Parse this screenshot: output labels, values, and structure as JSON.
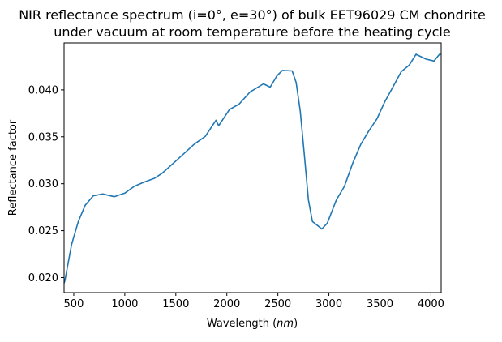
{
  "chart_data": {
    "type": "line",
    "title": [
      "NIR reflectance spectrum (i=0°, e=30°) of bulk EET96029 CM chondrite",
      "under vacuum at room temperature before the heating cycle"
    ],
    "xlabel": "Wavelength (",
    "xlabel_unit": "nm",
    "xlabel_close": ")",
    "ylabel": "Reflectance factor",
    "xlim": [
      405,
      4100
    ],
    "ylim": [
      0.0184,
      0.045
    ],
    "xticks": [
      500,
      1000,
      1500,
      2000,
      2500,
      3000,
      3500,
      4000
    ],
    "xtick_labels": [
      "500",
      "1000",
      "1500",
      "2000",
      "2500",
      "3000",
      "3500",
      "4000"
    ],
    "yticks": [
      0.02,
      0.025,
      0.03,
      0.035,
      0.04
    ],
    "ytick_labels": [
      "0.020",
      "0.025",
      "0.030",
      "0.035",
      "0.040"
    ],
    "grid": false,
    "series": [
      {
        "color": "#1f77b4",
        "x": [
          405,
          413,
          447,
          479,
          545,
          612,
          691,
          784,
          896,
          1000,
          1093,
          1185,
          1291,
          1370,
          1503,
          1681,
          1788,
          1893,
          1920,
          2026,
          2120,
          2226,
          2358,
          2425,
          2491,
          2544,
          2640,
          2679,
          2719,
          2759,
          2799,
          2838,
          2931,
          2984,
          3073,
          3152,
          3232,
          3311,
          3390,
          3470,
          3549,
          3629,
          3708,
          3788,
          3854,
          3950,
          4030,
          4083,
          4100
        ],
        "y": [
          0.0194,
          0.01966,
          0.02167,
          0.02353,
          0.02598,
          0.02771,
          0.02871,
          0.02891,
          0.02862,
          0.029,
          0.02972,
          0.03015,
          0.03058,
          0.03115,
          0.03245,
          0.03422,
          0.03503,
          0.03676,
          0.03618,
          0.03791,
          0.03848,
          0.03977,
          0.04064,
          0.04029,
          0.0415,
          0.04207,
          0.04202,
          0.04078,
          0.03776,
          0.03316,
          0.02828,
          0.02598,
          0.02518,
          0.0258,
          0.02828,
          0.02972,
          0.03216,
          0.03417,
          0.0356,
          0.0369,
          0.03877,
          0.04034,
          0.04193,
          0.04265,
          0.04379,
          0.04328,
          0.04307,
          0.04379,
          0.04379
        ]
      }
    ]
  }
}
